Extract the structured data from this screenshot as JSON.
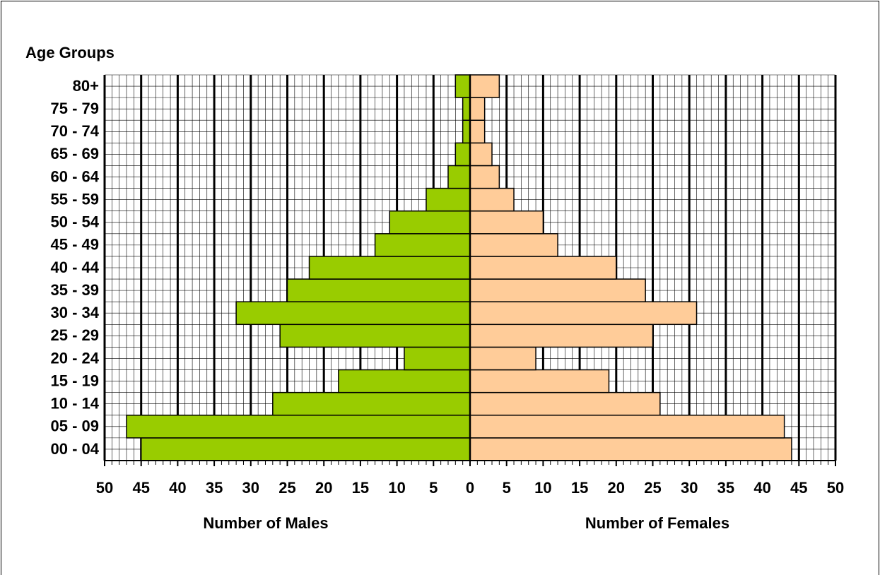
{
  "chart_data": {
    "type": "pyramid",
    "ylabel": "Age Groups",
    "categories": [
      "00 - 04",
      "05 - 09",
      "10 - 14",
      "15 - 19",
      "20 - 24",
      "25 - 29",
      "30 - 34",
      "35 - 39",
      "40 - 44",
      "45 - 49",
      "50 - 54",
      "55 - 59",
      "60 - 64",
      "65 - 69",
      "70 - 74",
      "75 - 79",
      "80+"
    ],
    "series": [
      {
        "name": "Number of Males",
        "side": "left",
        "color": "#99cc00",
        "values": [
          45,
          47,
          27,
          18,
          9,
          26,
          32,
          25,
          22,
          13,
          11,
          6,
          3,
          2,
          1,
          1,
          2
        ]
      },
      {
        "name": "Number of Females",
        "side": "right",
        "color": "#ffcc99",
        "values": [
          44,
          43,
          26,
          19,
          9,
          25,
          31,
          24,
          20,
          12,
          10,
          6,
          4,
          3,
          2,
          2,
          4
        ]
      }
    ],
    "xlim": [
      -50,
      50
    ],
    "xticks": [
      {
        "value": -50,
        "label": "50"
      },
      {
        "value": -45,
        "label": "45"
      },
      {
        "value": -40,
        "label": "40"
      },
      {
        "value": -35,
        "label": "35"
      },
      {
        "value": -30,
        "label": "30"
      },
      {
        "value": -25,
        "label": "25"
      },
      {
        "value": -20,
        "label": "20"
      },
      {
        "value": -15,
        "label": "15"
      },
      {
        "value": -10,
        "label": "10"
      },
      {
        "value": -5,
        "label": "5"
      },
      0,
      5,
      10,
      15,
      20,
      25,
      30,
      35,
      40,
      45,
      50
    ],
    "grid": true
  }
}
